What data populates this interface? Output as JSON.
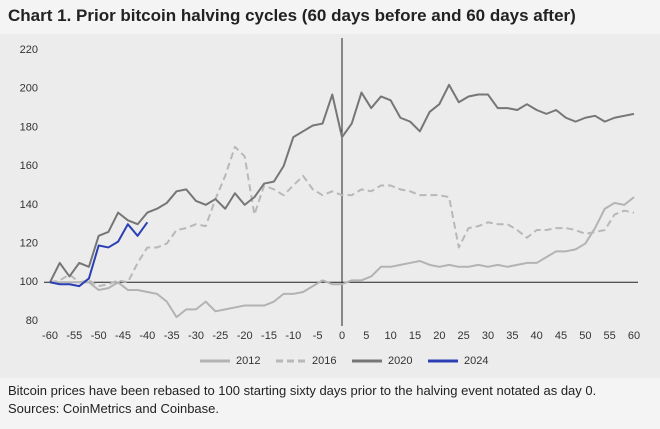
{
  "chart_data": {
    "type": "line",
    "title": "Chart 1. Prior bitcoin halving cycles (60 days before and 60 days after)",
    "note": "Bitcoin prices have been rebased to 100 starting sixty days prior to the halving event notated as day 0. Sources: CoinMetrics and Coinbase.",
    "x": [
      -60,
      -58,
      -56,
      -54,
      -52,
      -50,
      -48,
      -46,
      -44,
      -42,
      -40,
      -38,
      -36,
      -34,
      -32,
      -30,
      -28,
      -26,
      -24,
      -22,
      -20,
      -18,
      -16,
      -14,
      -12,
      -10,
      -8,
      -6,
      -4,
      -2,
      0,
      2,
      4,
      6,
      8,
      10,
      12,
      14,
      16,
      18,
      20,
      22,
      24,
      26,
      28,
      30,
      32,
      34,
      36,
      38,
      40,
      42,
      44,
      46,
      48,
      50,
      52,
      54,
      56,
      58,
      60
    ],
    "series": [
      {
        "name": "2012",
        "color": "#b3b3b3",
        "dashed": false,
        "values": [
          100,
          100,
          100,
          100,
          100,
          96,
          97,
          100,
          96,
          96,
          95,
          94,
          90,
          82,
          86,
          86,
          90,
          85,
          86,
          87,
          88,
          88,
          88,
          90,
          94,
          94,
          95,
          98,
          101,
          99,
          99,
          101,
          101,
          103,
          108,
          108,
          109,
          110,
          111,
          109,
          108,
          109,
          108,
          108,
          109,
          108,
          109,
          108,
          109,
          110,
          110,
          113,
          116,
          116,
          117,
          120,
          128,
          138,
          141,
          140,
          144
        ]
      },
      {
        "name": "2016",
        "color": "#b8b8b8",
        "dashed": true,
        "values": [
          100,
          101,
          104,
          100,
          101,
          98,
          99,
          101,
          100,
          110,
          118,
          118,
          120,
          127,
          128,
          130,
          129,
          143,
          155,
          170,
          165,
          135,
          150,
          148,
          145,
          150,
          155,
          148,
          145,
          147,
          145,
          145,
          148,
          147,
          150,
          150,
          148,
          147,
          145,
          145,
          145,
          144,
          118,
          128,
          129,
          131,
          130,
          130,
          127,
          123,
          127,
          127,
          128,
          128,
          127,
          125,
          126,
          127,
          135,
          137,
          136
        ]
      },
      {
        "name": "2020",
        "color": "#767676",
        "dashed": false,
        "values": [
          100,
          110,
          103,
          110,
          108,
          124,
          126,
          136,
          132,
          130,
          136,
          138,
          141,
          147,
          148,
          142,
          140,
          143,
          138,
          146,
          140,
          144,
          151,
          152,
          160,
          175,
          178,
          181,
          182,
          197,
          175,
          182,
          198,
          190,
          196,
          194,
          185,
          183,
          178,
          188,
          192,
          202,
          193,
          196,
          197,
          197,
          190,
          190,
          189,
          192,
          189,
          187,
          189,
          185,
          183,
          185,
          186,
          183,
          185,
          186,
          187
        ]
      },
      {
        "name": "2024",
        "color": "#2b3fb5",
        "dashed": false,
        "values": [
          100,
          99,
          99,
          98,
          102,
          119,
          118,
          121,
          130,
          124,
          131,
          null,
          null,
          null,
          null,
          null,
          null,
          null,
          null,
          null,
          null,
          null,
          null,
          null,
          null,
          null,
          null,
          null,
          null,
          null,
          null,
          null,
          null,
          null,
          null,
          null,
          null,
          null,
          null,
          null,
          null,
          null,
          null,
          null,
          null,
          null,
          null,
          null,
          null,
          null,
          null,
          null,
          null,
          null,
          null,
          null,
          null,
          null,
          null,
          null,
          null
        ]
      }
    ],
    "xlim": [
      -60,
      60
    ],
    "xticks": [
      -60,
      -55,
      -50,
      -45,
      -40,
      -35,
      -30,
      -25,
      -20,
      -15,
      -10,
      -5,
      0,
      5,
      10,
      15,
      20,
      25,
      30,
      35,
      40,
      45,
      50,
      55,
      60
    ],
    "ylim": [
      80,
      220
    ],
    "yticks": [
      80,
      100,
      120,
      140,
      160,
      180,
      200,
      220
    ],
    "reference_lines": {
      "x": 0,
      "y": 100
    },
    "grid": false
  }
}
